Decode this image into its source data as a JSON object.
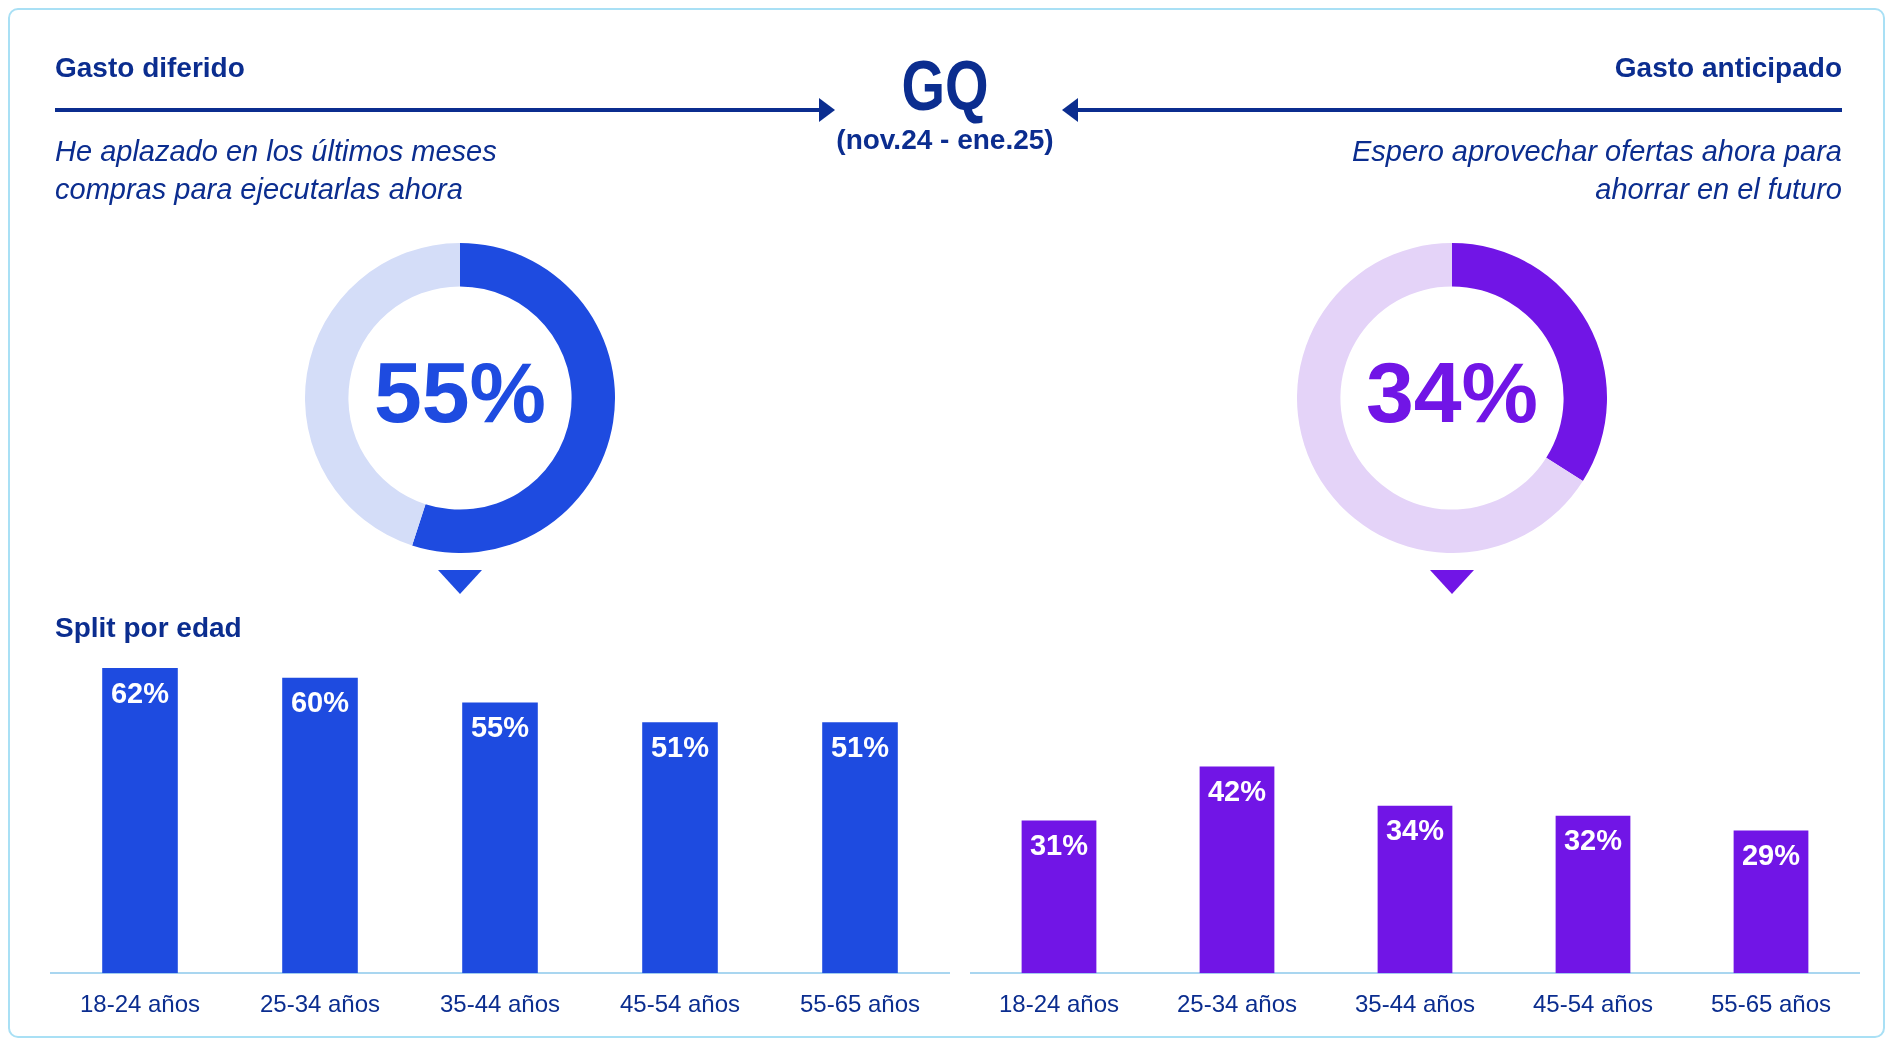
{
  "chart_data": [
    {
      "type": "donut",
      "title": "Gasto diferido",
      "subtitle": "He aplazado en los últimos meses compras para ejecutarlas ahora",
      "annotations": [
        "GQ",
        "(nov.24 - ene.25)"
      ],
      "categories": [
        null,
        null
      ],
      "values": [
        55,
        45
      ],
      "colors": [
        "#1e4be0",
        "#d4ddf8"
      ],
      "value_labels": [
        "55%",
        null
      ]
    },
    {
      "type": "donut",
      "title": "Gasto anticipado",
      "subtitle": "Espero aprovechar ofertas ahora para ahorrar en el futuro",
      "categories": [
        null,
        null
      ],
      "values": [
        34,
        66
      ],
      "colors": [
        "#7115e6",
        "#e4d3f8"
      ],
      "value_labels": [
        "34%",
        null
      ]
    },
    {
      "type": "bar",
      "title": "Split por edad",
      "categories": [
        "18-24 años",
        "25-34 años",
        "35-44 años",
        "45-54 años",
        "55-65 años"
      ],
      "values": [
        62,
        60,
        55,
        51,
        51
      ],
      "color": "#1e4be0",
      "value_labels": [
        "62%",
        "60%",
        "55%",
        "51%",
        "51%"
      ]
    },
    {
      "type": "bar",
      "categories": [
        "18-24 años",
        "25-34 años",
        "35-44 años",
        "45-54 años",
        "55-65 años"
      ],
      "values": [
        31,
        42,
        34,
        32,
        29
      ],
      "color": "#7115e6",
      "value_labels": [
        "31%",
        "42%",
        "34%",
        "32%",
        "29%"
      ]
    }
  ]
}
